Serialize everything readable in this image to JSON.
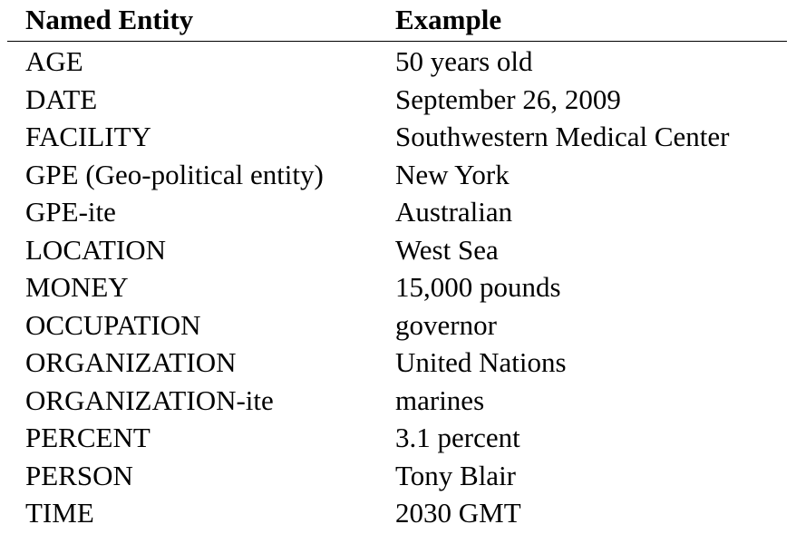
{
  "table": {
    "headers": [
      "Named Entity",
      "Example"
    ],
    "rows": [
      [
        "AGE",
        "50 years old"
      ],
      [
        "DATE",
        "September 26, 2009"
      ],
      [
        "FACILITY",
        "Southwestern Medical Center"
      ],
      [
        "GPE (Geo-political entity)",
        "New York"
      ],
      [
        "GPE-ite",
        "Australian"
      ],
      [
        "LOCATION",
        "West Sea"
      ],
      [
        "MONEY",
        "15,000 pounds"
      ],
      [
        "OCCUPATION",
        "governor"
      ],
      [
        "ORGANIZATION",
        "United Nations"
      ],
      [
        "ORGANIZATION-ite",
        "marines"
      ],
      [
        "PERCENT",
        "3.1 percent"
      ],
      [
        "PERSON",
        "Tony Blair"
      ],
      [
        "TIME",
        "2030 GMT"
      ]
    ]
  }
}
